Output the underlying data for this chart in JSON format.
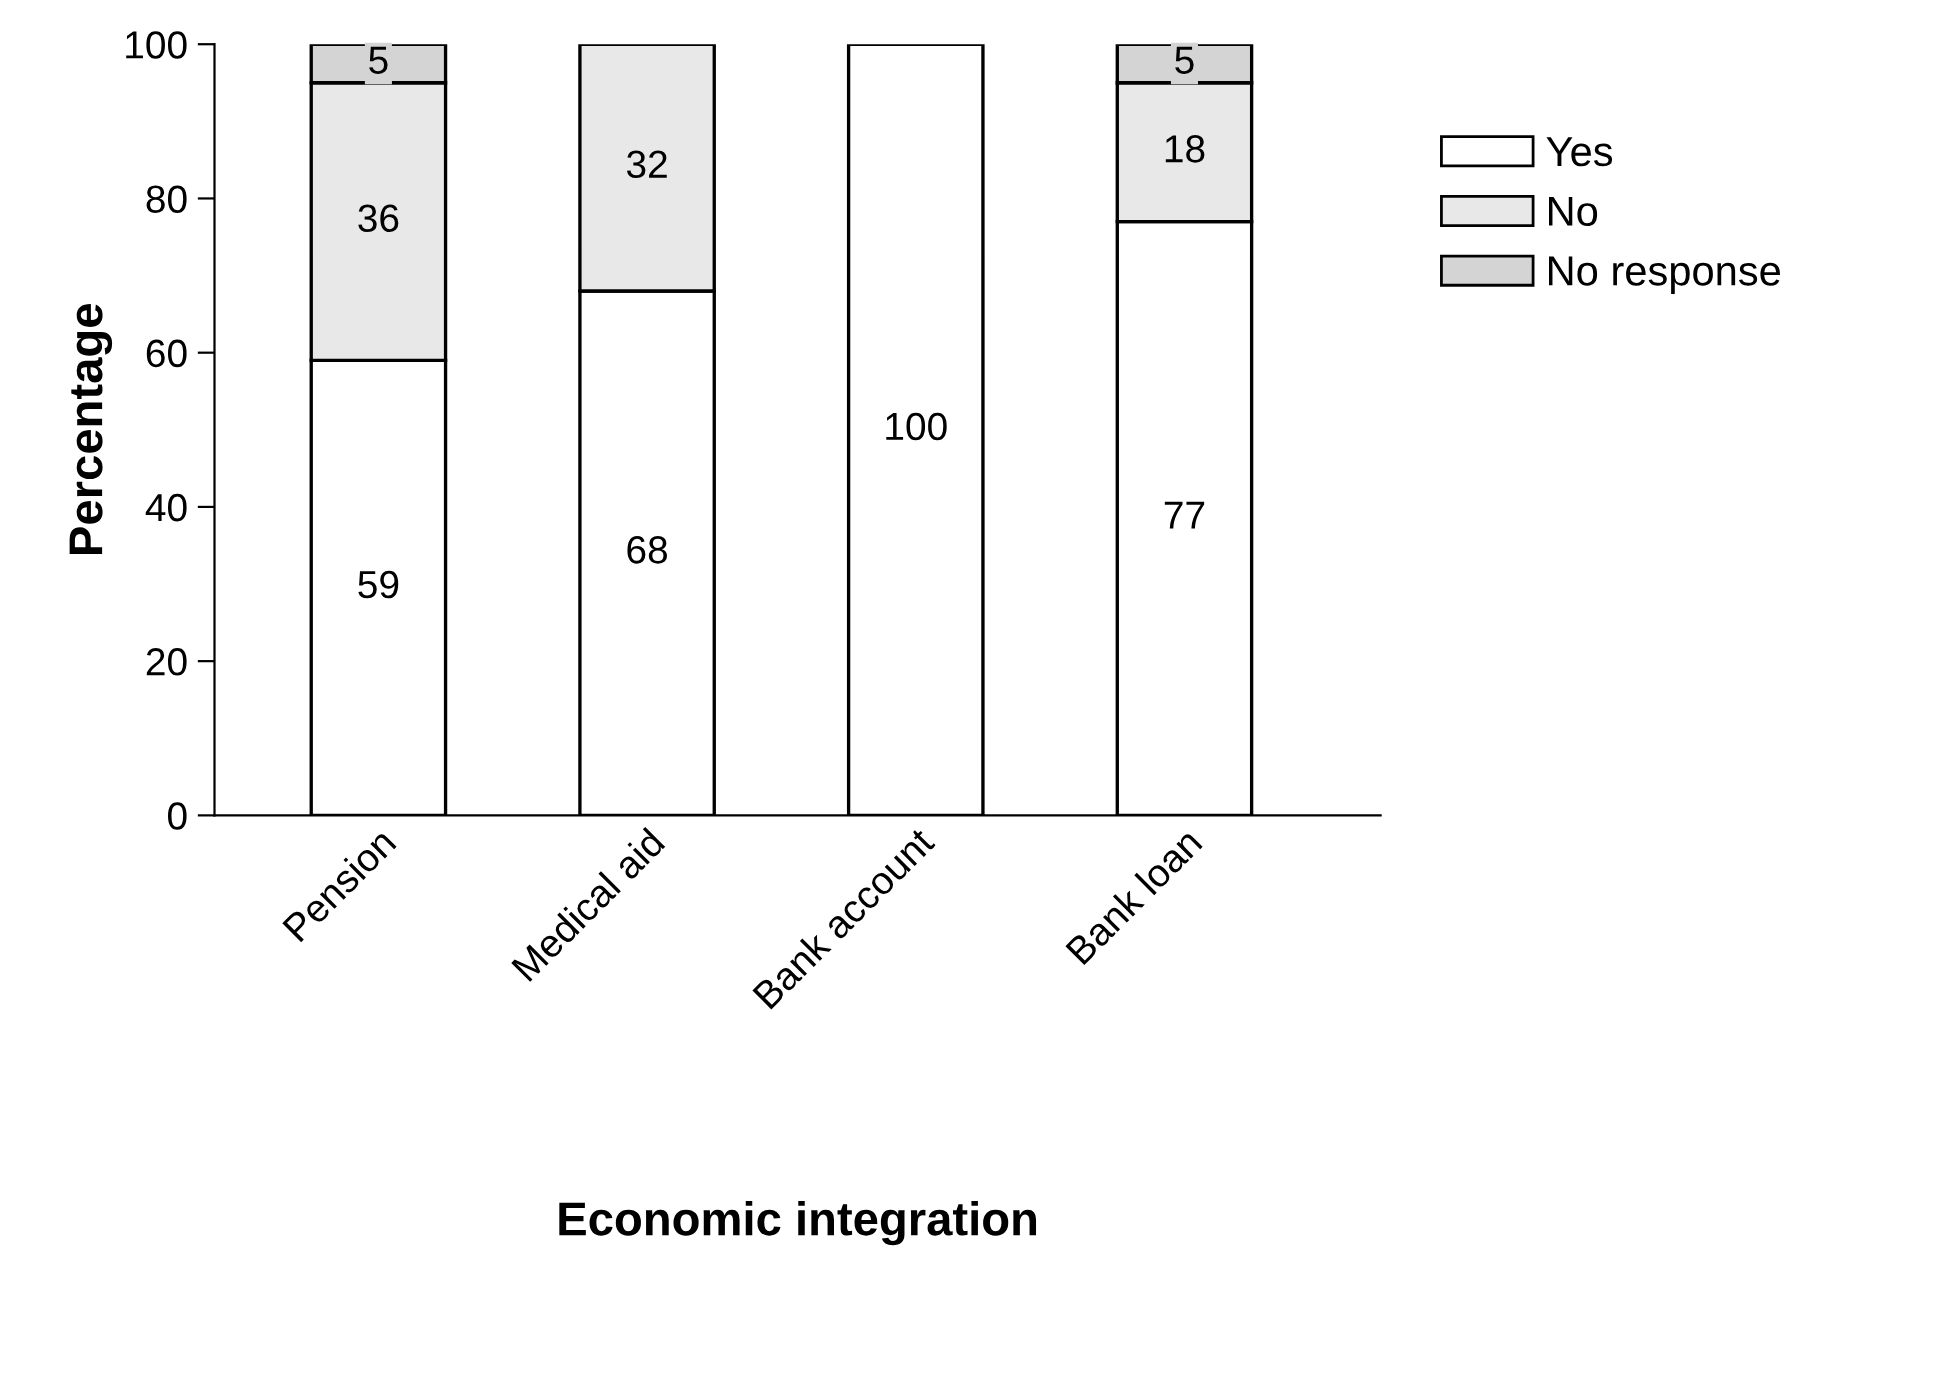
{
  "chart_data": {
    "type": "bar",
    "stacked": true,
    "xlabel": "Economic integration",
    "ylabel": "Percentage",
    "categories": [
      "Pension",
      "Medical aid",
      "Bank account",
      "Bank loan"
    ],
    "series": [
      {
        "name": "Yes",
        "color": "#ffffff",
        "values": [
          59,
          68,
          100,
          77
        ]
      },
      {
        "name": "No",
        "color": "#e8e8e8",
        "values": [
          36,
          32,
          null,
          18
        ]
      },
      {
        "name": "No response",
        "color": "#d4d4d4",
        "values": [
          5,
          null,
          null,
          5
        ]
      }
    ],
    "ylim": [
      0,
      100
    ],
    "yticks": [
      0,
      20,
      40,
      60,
      80,
      100
    ],
    "data_labels": true,
    "legend": "right",
    "grid": false
  }
}
